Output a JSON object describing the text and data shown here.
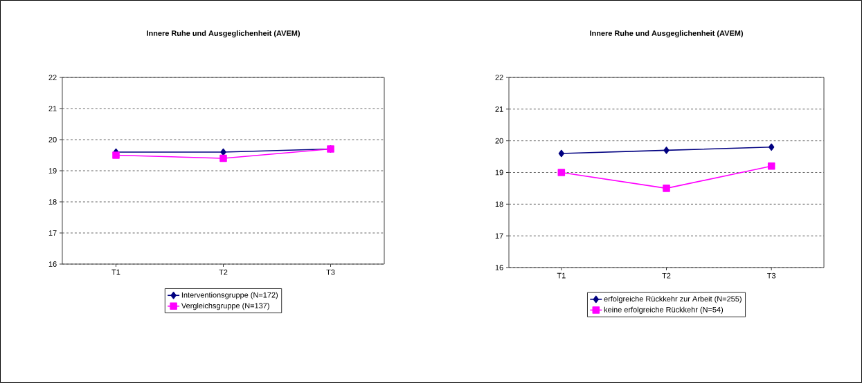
{
  "chart_data": [
    {
      "type": "line",
      "title": "Innere Ruhe und Ausgeglichenheit (AVEM)",
      "categories": [
        "T1",
        "T2",
        "T3"
      ],
      "ylim": [
        16,
        22
      ],
      "yticks": [
        16,
        17,
        18,
        19,
        20,
        21,
        22
      ],
      "grid": "y",
      "legend": "bottom",
      "line_style": "solid",
      "series": [
        {
          "name": "Interventionsgruppe (N=172)",
          "color": "#000080",
          "marker": "diamond",
          "values": [
            19.6,
            19.6,
            19.7
          ]
        },
        {
          "name": "Vergleichsgruppe (N=137)",
          "color": "#ff00ff",
          "marker": "square",
          "values": [
            19.5,
            19.4,
            19.7
          ]
        }
      ]
    },
    {
      "type": "line",
      "title": "Innere Ruhe und Ausgeglichenheit (AVEM)",
      "categories": [
        "T1",
        "T2",
        "T3"
      ],
      "ylim": [
        16,
        22
      ],
      "yticks": [
        16,
        17,
        18,
        19,
        20,
        21,
        22
      ],
      "grid": "y",
      "legend": "bottom",
      "line_style": "solid",
      "series": [
        {
          "name": "erfolgreiche Rückkehr zur Arbeit (N=255)",
          "color": "#000080",
          "marker": "diamond",
          "values": [
            19.6,
            19.7,
            19.8
          ]
        },
        {
          "name": "keine erfolgreiche Rückkehr (N=54)",
          "color": "#ff00ff",
          "marker": "square",
          "values": [
            19.0,
            18.5,
            19.2
          ]
        }
      ]
    }
  ]
}
